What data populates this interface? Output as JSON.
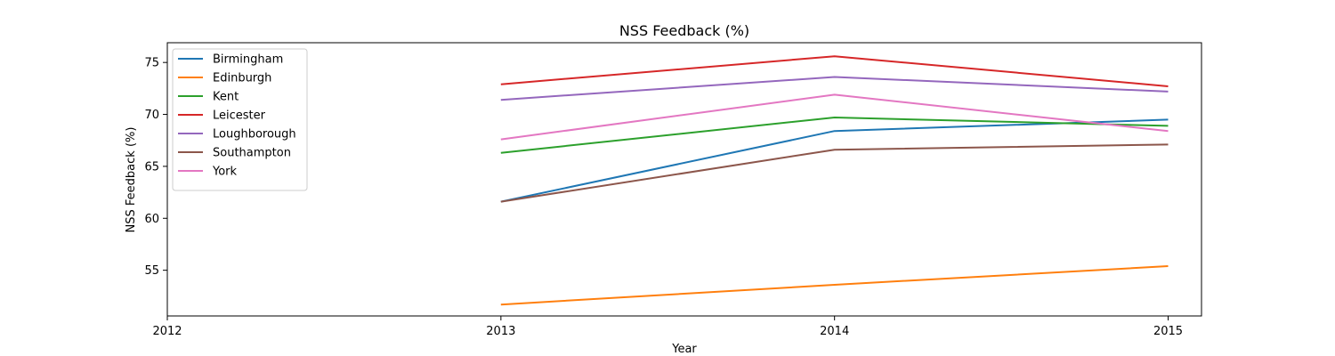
{
  "chart_data": {
    "type": "line",
    "title": "NSS Feedback (%)",
    "xlabel": "Year",
    "ylabel": "NSS Feedback (%)",
    "x": [
      2013,
      2014,
      2015
    ],
    "xticks": [
      2012,
      2013,
      2014,
      2015
    ],
    "xlim": [
      2012,
      2015.1
    ],
    "yticks": [
      55,
      60,
      65,
      70,
      75
    ],
    "ylim": [
      50.6,
      76.9
    ],
    "grid": false,
    "legend_position": "top-left",
    "series": [
      {
        "name": "Birmingham",
        "color": "#1f77b4",
        "values": [
          61.6,
          68.4,
          69.5
        ]
      },
      {
        "name": "Edinburgh",
        "color": "#ff7f0e",
        "values": [
          51.7,
          53.6,
          55.4
        ]
      },
      {
        "name": "Kent",
        "color": "#2ca02c",
        "values": [
          66.3,
          69.7,
          68.9
        ]
      },
      {
        "name": "Leicester",
        "color": "#d62728",
        "values": [
          72.9,
          75.6,
          72.7
        ]
      },
      {
        "name": "Loughborough",
        "color": "#9467bd",
        "values": [
          71.4,
          73.6,
          72.2
        ]
      },
      {
        "name": "Southampton",
        "color": "#8c564b",
        "values": [
          61.6,
          66.6,
          67.1
        ]
      },
      {
        "name": "York",
        "color": "#e377c2",
        "values": [
          67.6,
          71.9,
          68.4
        ]
      }
    ]
  }
}
